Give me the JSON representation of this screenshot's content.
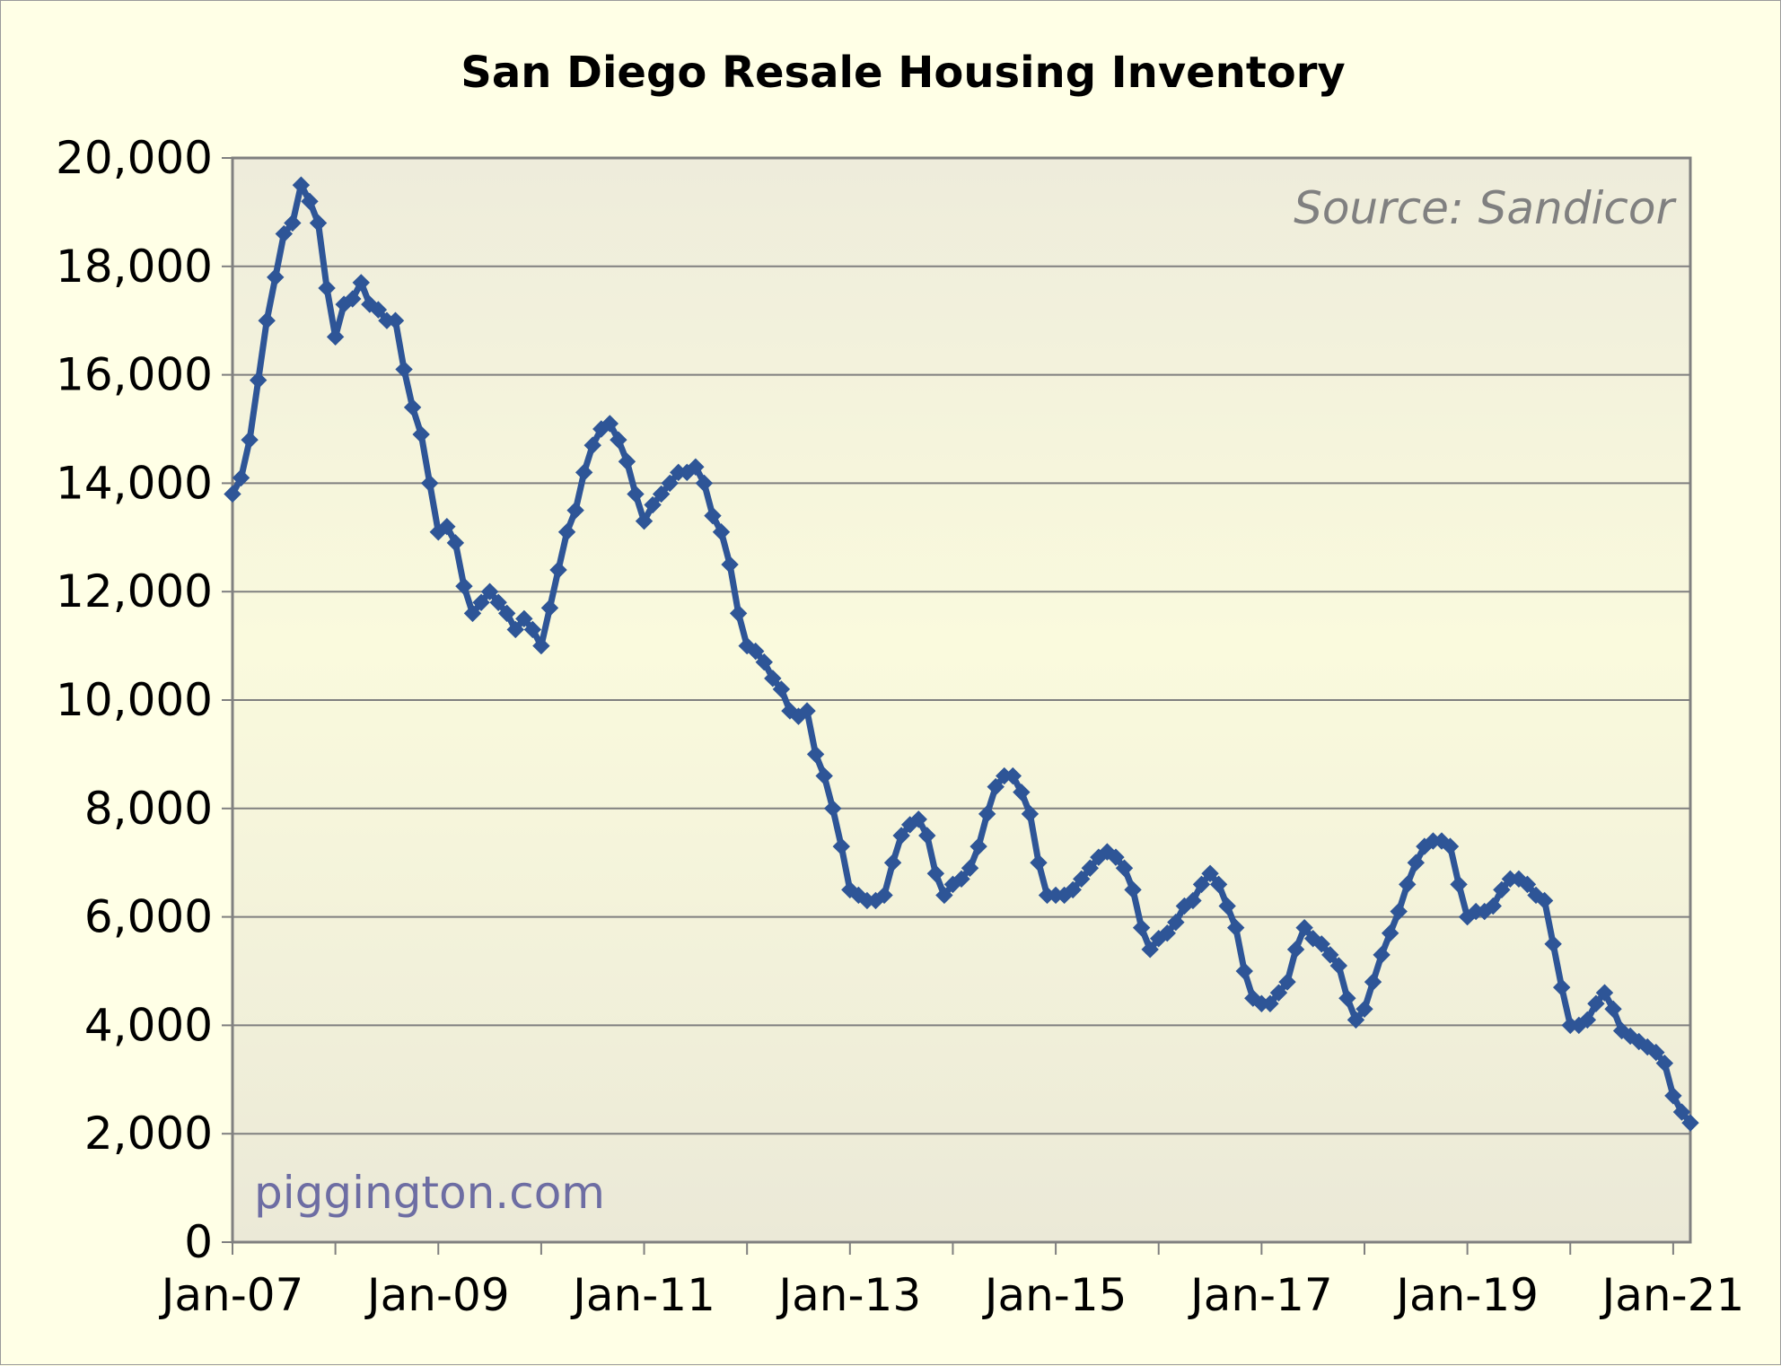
{
  "chart_data": {
    "type": "line",
    "title": "San Diego Resale Housing Inventory",
    "source_note": "Source: Sandicor",
    "watermark": "piggington.com",
    "xlabel": "",
    "ylabel": "",
    "ylim": [
      0,
      20000
    ],
    "yticks": [
      0,
      2000,
      4000,
      6000,
      8000,
      10000,
      12000,
      14000,
      16000,
      18000,
      20000
    ],
    "ytick_labels": [
      "0",
      "2,000",
      "4,000",
      "6,000",
      "8,000",
      "10,000",
      "12,000",
      "14,000",
      "16,000",
      "18,000",
      "20,000"
    ],
    "xlim_months": [
      0,
      170
    ],
    "xticks_months": [
      0,
      24,
      48,
      72,
      96,
      120,
      144,
      168
    ],
    "xtick_labels": [
      "Jan-07",
      "Jan-09",
      "Jan-11",
      "Jan-13",
      "Jan-15",
      "Jan-17",
      "Jan-19",
      "Jan-21"
    ],
    "minor_xticks_months": [
      12,
      36,
      60,
      84,
      108,
      132,
      156
    ],
    "grid": true,
    "legend": "none",
    "series": [
      {
        "name": "Resale Inventory",
        "color": "#2e5597",
        "marker": "diamond",
        "x_start": "Jan-07",
        "x_interval": "month",
        "values": [
          13800,
          14100,
          14800,
          15900,
          17000,
          17800,
          18600,
          18800,
          19500,
          19200,
          18800,
          17600,
          16700,
          17300,
          17400,
          17700,
          17300,
          17200,
          17000,
          17000,
          16100,
          15400,
          14900,
          14000,
          13100,
          13200,
          12900,
          12100,
          11600,
          11800,
          12000,
          11800,
          11600,
          11300,
          11500,
          11300,
          11000,
          11700,
          12400,
          13100,
          13500,
          14200,
          14700,
          15000,
          15100,
          14800,
          14400,
          13800,
          13300,
          13600,
          13800,
          14000,
          14200,
          14200,
          14300,
          14000,
          13400,
          13100,
          12500,
          11600,
          11000,
          10900,
          10700,
          10400,
          10200,
          9800,
          9700,
          9800,
          9000,
          8600,
          8000,
          7300,
          6500,
          6400,
          6300,
          6300,
          6400,
          7000,
          7500,
          7700,
          7800,
          7500,
          6800,
          6400,
          6600,
          6700,
          6900,
          7300,
          7900,
          8400,
          8600,
          8600,
          8300,
          7900,
          7000,
          6400,
          6400,
          6400,
          6500,
          6700,
          6900,
          7100,
          7200,
          7100,
          6900,
          6500,
          5800,
          5400,
          5600,
          5700,
          5900,
          6200,
          6300,
          6600,
          6800,
          6600,
          6200,
          5800,
          5000,
          4500,
          4400,
          4400,
          4600,
          4800,
          5400,
          5800,
          5600,
          5500,
          5300,
          5100,
          4500,
          4100,
          4300,
          4800,
          5300,
          5700,
          6100,
          6600,
          7000,
          7300,
          7400,
          7400,
          7300,
          6600,
          6000,
          6100,
          6100,
          6200,
          6500,
          6700,
          6700,
          6600,
          6400,
          6300,
          5500,
          4700,
          4000,
          4000,
          4100,
          4400,
          4600,
          4300,
          3900,
          3800,
          3700,
          3600,
          3500,
          3300,
          2700,
          2400,
          2200
        ]
      }
    ]
  }
}
